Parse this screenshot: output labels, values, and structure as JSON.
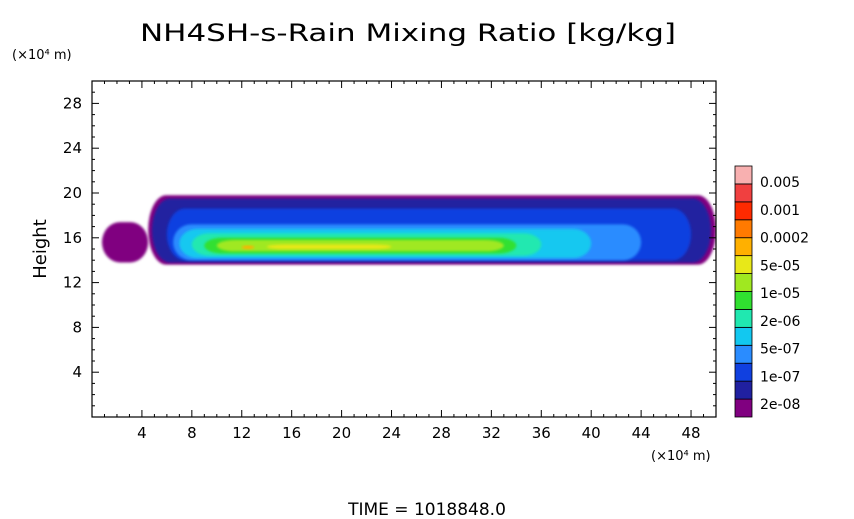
{
  "chart_data": {
    "type": "heatmap",
    "title": "NH4SH-s-Rain Mixing Ratio [kg/kg]",
    "ylabel": "Height",
    "x_unit_label": "(×10⁴ m)",
    "y_unit_label": "(×10⁴ m)",
    "xlim": [
      0,
      50
    ],
    "ylim": [
      0,
      30
    ],
    "x_ticks": [
      4,
      8,
      12,
      16,
      20,
      24,
      28,
      32,
      36,
      40,
      44,
      48
    ],
    "y_ticks": [
      4,
      8,
      12,
      16,
      20,
      24,
      28
    ],
    "grid": false,
    "colorbar": {
      "placement": "right",
      "labels": [
        "0.005",
        "0.001",
        "0.0002",
        "5e-05",
        "1e-05",
        "2e-06",
        "5e-07",
        "1e-07",
        "2e-08"
      ],
      "colors": [
        "#800080",
        "#2020a0",
        "#1040e0",
        "#2a8cff",
        "#12c8f0",
        "#20e8b0",
        "#30e030",
        "#a0e820",
        "#e8e818",
        "#ffb000",
        "#ff7a00",
        "#ff2a00",
        "#f04040",
        "#f8b0b0"
      ]
    },
    "regions": [
      {
        "level": 0,
        "x_range": [
          0.8,
          4.5
        ],
        "y_range": [
          13.8,
          17.4
        ]
      },
      {
        "level": 0,
        "x_range": [
          4.5,
          50.0
        ],
        "y_range": [
          13.6,
          19.8
        ]
      },
      {
        "level": 1,
        "x_range": [
          4.8,
          49.6
        ],
        "y_range": [
          13.8,
          19.5
        ]
      },
      {
        "level": 2,
        "x_range": [
          6.0,
          48.0
        ],
        "y_range": [
          14.0,
          18.6
        ]
      },
      {
        "level": 3,
        "x_range": [
          6.5,
          44.0
        ],
        "y_range": [
          14.0,
          17.2
        ]
      },
      {
        "level": 4,
        "x_range": [
          7.0,
          40.0
        ],
        "y_range": [
          14.2,
          16.8
        ]
      },
      {
        "level": 5,
        "x_range": [
          8.0,
          36.0
        ],
        "y_range": [
          14.4,
          16.4
        ]
      },
      {
        "level": 6,
        "x_range": [
          9.0,
          34.0
        ],
        "y_range": [
          14.6,
          16.0
        ]
      },
      {
        "level": 7,
        "x_range": [
          10.0,
          33.0
        ],
        "y_range": [
          14.8,
          15.8
        ]
      },
      {
        "level": 8,
        "x_range": [
          14.0,
          24.0
        ],
        "y_range": [
          15.0,
          15.4
        ]
      },
      {
        "level": 9,
        "x_range": [
          12.0,
          13.0
        ],
        "y_range": [
          15.0,
          15.3
        ]
      }
    ],
    "time_label": "TIME = 1018848.0"
  }
}
